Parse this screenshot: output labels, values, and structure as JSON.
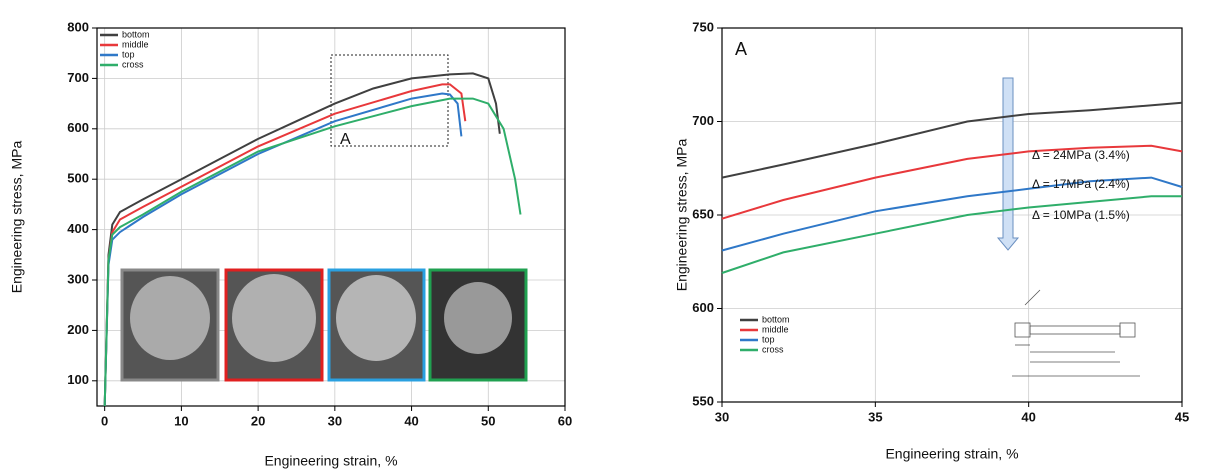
{
  "chart_data": [
    {
      "type": "line",
      "x_label": "Engineering strain, %",
      "y_label": "Engineering stress, MPa",
      "xlim": [
        -1,
        60
      ],
      "ylim": [
        50,
        800
      ],
      "xticks": [
        0,
        10,
        20,
        30,
        40,
        50,
        60
      ],
      "yticks": [
        100,
        200,
        300,
        400,
        500,
        600,
        700,
        800
      ],
      "grid": true,
      "legend": "upper left",
      "annotations": [
        "A"
      ],
      "series": [
        {
          "name": "bottom",
          "color": "#404040",
          "x": [
            0,
            0.5,
            1,
            2,
            5,
            10,
            15,
            20,
            25,
            30,
            35,
            40,
            45,
            48,
            50,
            51,
            51.5
          ],
          "values": [
            50,
            350,
            410,
            435,
            460,
            500,
            540,
            580,
            615,
            650,
            680,
            700,
            708,
            710,
            700,
            650,
            590
          ]
        },
        {
          "name": "middle",
          "color": "#e8383b",
          "x": [
            0,
            0.5,
            1,
            2,
            5,
            10,
            20,
            30,
            40,
            44,
            45,
            46.5,
            47
          ],
          "values": [
            50,
            340,
            395,
            420,
            445,
            485,
            565,
            630,
            675,
            688,
            688,
            670,
            615
          ]
        },
        {
          "name": "top",
          "color": "#2f78c8",
          "x": [
            0,
            0.5,
            1,
            2,
            5,
            10,
            20,
            30,
            40,
            44,
            45,
            46,
            46.5
          ],
          "values": [
            50,
            330,
            380,
            395,
            425,
            470,
            550,
            615,
            660,
            670,
            668,
            650,
            585
          ]
        },
        {
          "name": "cross",
          "color": "#2fae6a",
          "x": [
            0,
            0.5,
            1,
            2,
            5,
            10,
            20,
            30,
            40,
            45,
            48,
            50,
            52,
            53.5,
            54.2
          ],
          "values": [
            50,
            340,
            390,
            405,
            430,
            475,
            555,
            605,
            645,
            660,
            660,
            650,
            600,
            500,
            430
          ]
        }
      ]
    },
    {
      "type": "line",
      "x_label": "Engineering strain, %",
      "y_label": "Engineering stress, MPa",
      "xlim": [
        30,
        45
      ],
      "ylim": [
        550,
        750
      ],
      "xticks": [
        30,
        35,
        40,
        45
      ],
      "yticks": [
        550,
        600,
        650,
        700,
        750
      ],
      "grid": true,
      "legend": "lower left",
      "annotations": [
        "A",
        "Δ = 24MPa (3.4%)",
        "Δ = 17MPa (2.4%)",
        "Δ = 10MPa (1.5%)"
      ],
      "series": [
        {
          "name": "bottom",
          "color": "#404040",
          "x": [
            30,
            32,
            35,
            38,
            40,
            42,
            45
          ],
          "values": [
            670,
            677,
            688,
            700,
            704,
            706,
            710
          ]
        },
        {
          "name": "middle",
          "color": "#e8383b",
          "x": [
            30,
            32,
            35,
            38,
            40,
            42,
            44,
            45
          ],
          "values": [
            648,
            658,
            670,
            680,
            684,
            686,
            687,
            684
          ]
        },
        {
          "name": "top",
          "color": "#2f78c8",
          "x": [
            30,
            32,
            35,
            38,
            40,
            42,
            44,
            45
          ],
          "values": [
            631,
            640,
            652,
            660,
            664,
            668,
            670,
            665
          ]
        },
        {
          "name": "cross",
          "color": "#2fae6a",
          "x": [
            30,
            32,
            35,
            38,
            40,
            42,
            44,
            45
          ],
          "values": [
            619,
            630,
            640,
            650,
            654,
            657,
            660,
            660
          ]
        }
      ]
    }
  ]
}
